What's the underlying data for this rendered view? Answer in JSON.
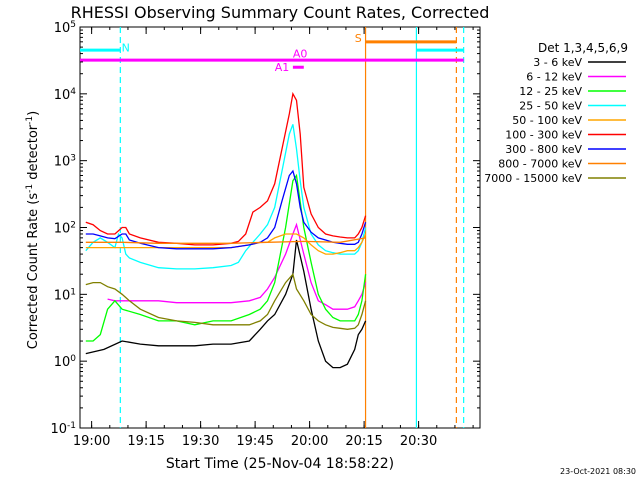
{
  "chart_data": {
    "type": "line",
    "title": "RHESSI Observing Summary Count Rates, Corrected",
    "xlabel": "Start Time (25-Nov-04 18:58:22)",
    "ylabel_main": "Corrected Count Rate (s",
    "ylabel_sup1": "-1",
    "ylabel_mid": " detector",
    "ylabel_sup2": "-1",
    "ylabel_end": ")",
    "y_scale": "log",
    "ylim": [
      0.1,
      100000
    ],
    "xlim_min": [
      -1.6,
      108.5
    ],
    "y_ticks": [
      {
        "v": 0.1,
        "base": "10",
        "exp": "-1"
      },
      {
        "v": 1,
        "base": "10",
        "exp": "0"
      },
      {
        "v": 10,
        "base": "10",
        "exp": "1"
      },
      {
        "v": 100,
        "base": "10",
        "exp": "2"
      },
      {
        "v": 1000,
        "base": "10",
        "exp": "3"
      },
      {
        "v": 10000,
        "base": "10",
        "exp": "4"
      },
      {
        "v": 100000,
        "base": "10",
        "exp": "5"
      }
    ],
    "x_ticks": [
      {
        "min": 1.6,
        "label": "19:00"
      },
      {
        "min": 16.6,
        "label": "19:15"
      },
      {
        "min": 31.6,
        "label": "19:30"
      },
      {
        "min": 46.6,
        "label": "19:45"
      },
      {
        "min": 61.6,
        "label": "20:00"
      },
      {
        "min": 76.6,
        "label": "20:15"
      },
      {
        "min": 91.6,
        "label": "20:30"
      }
    ],
    "legend_position": "right",
    "legend_title": "Det 1,3,4,5,6,9",
    "series": [
      {
        "name": "3 - 6 keV",
        "color": "#000000",
        "x": [
          0,
          5,
          10,
          15,
          20,
          25,
          30,
          35,
          40,
          45,
          48,
          50,
          52,
          55,
          57,
          58,
          60,
          62,
          64,
          66,
          68,
          70,
          72,
          74,
          75,
          76,
          77
        ],
        "y": [
          1.3,
          1.5,
          2,
          1.8,
          1.7,
          1.7,
          1.7,
          1.8,
          1.8,
          2,
          3,
          4,
          5,
          10,
          20,
          65,
          22,
          6,
          2,
          1,
          0.8,
          0.8,
          0.9,
          1.5,
          2.5,
          3,
          4
        ]
      },
      {
        "name": "6 - 12 keV",
        "color": "#ff00ff",
        "x": [
          6,
          8,
          10,
          15,
          20,
          25,
          30,
          35,
          40,
          45,
          48,
          50,
          52,
          55,
          57,
          58,
          60,
          62,
          64,
          66,
          68,
          70,
          72,
          74,
          75,
          76,
          77
        ],
        "y": [
          8.5,
          8,
          8,
          8,
          8,
          7.5,
          7.5,
          7.5,
          7.5,
          8,
          9,
          12,
          18,
          40,
          80,
          110,
          40,
          15,
          8,
          7,
          6,
          6,
          6,
          6.5,
          8,
          10,
          15
        ]
      },
      {
        "name": "12 - 25 keV",
        "color": "#00ff00",
        "x": [
          0,
          2,
          4,
          6,
          8,
          10,
          15,
          20,
          25,
          30,
          35,
          40,
          45,
          48,
          50,
          52,
          55,
          57,
          58,
          60,
          62,
          64,
          66,
          68,
          70,
          72,
          74,
          75,
          76,
          77
        ],
        "y": [
          2,
          2,
          2.5,
          6,
          8,
          6,
          5,
          4,
          4,
          3.5,
          4,
          4,
          5,
          6,
          8,
          15,
          100,
          500,
          600,
          100,
          30,
          10,
          6,
          4.5,
          4,
          4,
          4,
          5,
          8,
          20
        ]
      },
      {
        "name": "25 - 50 keV",
        "color": "#00ffff",
        "x": [
          0,
          2,
          4,
          6,
          8,
          9,
          10,
          11,
          12,
          15,
          20,
          25,
          30,
          35,
          40,
          42,
          44,
          46,
          48,
          50,
          52,
          54,
          56,
          57,
          58,
          59,
          60,
          62,
          64,
          66,
          68,
          70,
          72,
          74,
          75,
          76,
          77
        ],
        "y": [
          45,
          60,
          70,
          60,
          50,
          80,
          70,
          40,
          35,
          30,
          25,
          24,
          24,
          25,
          27,
          30,
          45,
          60,
          80,
          110,
          200,
          700,
          2500,
          3500,
          1500,
          500,
          200,
          80,
          55,
          45,
          42,
          40,
          40,
          40,
          45,
          60,
          100
        ]
      },
      {
        "name": "50 - 100 keV",
        "color": "#ffa500",
        "x": [
          0,
          5,
          10,
          15,
          20,
          25,
          30,
          35,
          40,
          45,
          48,
          50,
          52,
          55,
          57,
          58,
          60,
          62,
          64,
          66,
          68,
          70,
          72,
          74,
          75,
          76,
          77
        ],
        "y": [
          50,
          50,
          50,
          50,
          50,
          50,
          50,
          50,
          50,
          55,
          60,
          60,
          70,
          80,
          80,
          80,
          70,
          55,
          45,
          40,
          40,
          42,
          45,
          45,
          50,
          60,
          80
        ]
      },
      {
        "name": "100 - 300 keV",
        "color": "#ff0000",
        "x": [
          0,
          2,
          4,
          6,
          8,
          10,
          11,
          12,
          15,
          20,
          25,
          30,
          35,
          40,
          42,
          44,
          46,
          48,
          50,
          52,
          54,
          56,
          57,
          58,
          59,
          60,
          62,
          64,
          66,
          68,
          70,
          72,
          74,
          75,
          76,
          77
        ],
        "y": [
          120,
          110,
          90,
          80,
          80,
          100,
          100,
          80,
          70,
          60,
          58,
          55,
          55,
          58,
          62,
          80,
          170,
          200,
          250,
          450,
          1500,
          5000,
          10000,
          8000,
          2500,
          400,
          160,
          100,
          80,
          75,
          72,
          70,
          70,
          80,
          100,
          150
        ]
      },
      {
        "name": "300 - 800 keV",
        "color": "#0000ff",
        "x": [
          0,
          2,
          4,
          6,
          8,
          10,
          11,
          12,
          15,
          20,
          25,
          30,
          35,
          40,
          45,
          48,
          50,
          52,
          54,
          56,
          57,
          58,
          59,
          60,
          62,
          64,
          66,
          68,
          70,
          72,
          74,
          75,
          76,
          77
        ],
        "y": [
          80,
          80,
          75,
          70,
          68,
          80,
          80,
          65,
          58,
          50,
          48,
          48,
          48,
          50,
          55,
          60,
          70,
          100,
          250,
          600,
          700,
          450,
          200,
          120,
          85,
          70,
          65,
          60,
          58,
          56,
          56,
          60,
          80,
          120
        ]
      },
      {
        "name": "800 - 7000 keV",
        "color": "#ff8000",
        "x": [
          0,
          10,
          20,
          30,
          40,
          50,
          60,
          70,
          77
        ],
        "y": [
          60,
          60,
          58,
          58,
          58,
          60,
          62,
          60,
          70
        ]
      },
      {
        "name": "7000 - 15000 keV",
        "color": "#808000",
        "x": [
          0,
          2,
          4,
          6,
          8,
          10,
          12,
          15,
          20,
          25,
          30,
          35,
          40,
          45,
          48,
          50,
          52,
          55,
          57,
          58,
          60,
          62,
          64,
          66,
          68,
          70,
          72,
          74,
          75,
          76,
          77
        ],
        "y": [
          14,
          15,
          15,
          13,
          12,
          10,
          8,
          6,
          4.5,
          4,
          3.8,
          3.5,
          3.5,
          3.5,
          4,
          5,
          8,
          15,
          20,
          12,
          8,
          5,
          4,
          3.5,
          3.2,
          3.1,
          3,
          3.1,
          3.5,
          5,
          8
        ]
      }
    ],
    "annotations": [
      {
        "text": "N",
        "min": 11,
        "y": 43000,
        "color": "#00ffff"
      },
      {
        "text": "S",
        "min": 75,
        "y": 60000,
        "color": "#ff8000"
      },
      {
        "text": "A0",
        "min": 59,
        "y": 35000,
        "color": "#ff00ff"
      },
      {
        "text": "A1",
        "min": 54,
        "y": 22000,
        "color": "#ff00ff"
      }
    ],
    "horizontal_bars": [
      {
        "label": "night",
        "color": "#00ffff",
        "segments": [
          [
            -1.6,
            9.5
          ],
          [
            91,
            104
          ]
        ],
        "y": 45000
      },
      {
        "label": "saa",
        "color": "#ff8000",
        "segments": [
          [
            77,
            102
          ]
        ],
        "y": 60000
      },
      {
        "label": "attenuator",
        "color": "#ff00ff",
        "segments": [
          [
            -1.6,
            104
          ]
        ],
        "y": 32000
      },
      {
        "label": "attenuator_short",
        "color": "#ff00ff",
        "segments": [
          [
            57,
            60
          ]
        ],
        "y": 25000
      }
    ],
    "vertical_lines": [
      {
        "min": 9.5,
        "color": "#00ffff",
        "dash": true
      },
      {
        "min": 77,
        "color": "#ff8000",
        "dash": false
      },
      {
        "min": 91,
        "color": "#00ffff",
        "dash": false
      },
      {
        "min": 102,
        "color": "#ff8000",
        "dash": true
      },
      {
        "min": 104,
        "color": "#00ffff",
        "dash": true
      }
    ]
  },
  "footer_timestamp": "23-Oct-2021 08:30"
}
